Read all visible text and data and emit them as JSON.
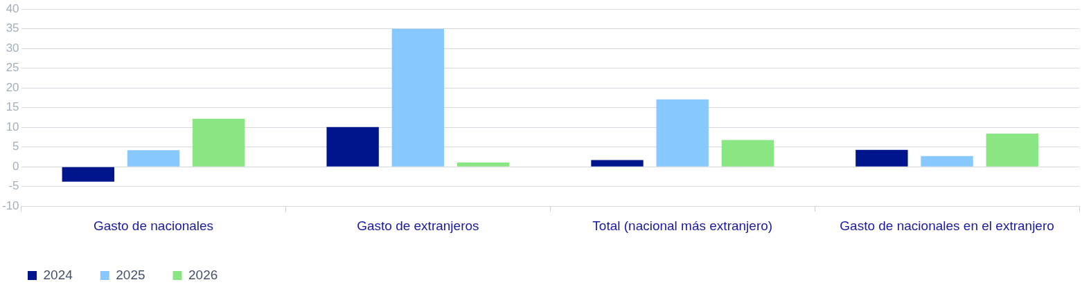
{
  "chart_data": {
    "type": "bar",
    "categories": [
      "Gasto de nacionales",
      "Gasto de extranjeros",
      "Total (nacional más extranjero)",
      "Gasto de nacionales en el extranjero"
    ],
    "series": [
      {
        "name": "2024",
        "color": "#00148c",
        "values": [
          -3.8,
          10.1,
          1.7,
          4.3
        ]
      },
      {
        "name": "2025",
        "color": "#87c8ff",
        "values": [
          4.2,
          35,
          17.1,
          2.7
        ]
      },
      {
        "name": "2026",
        "color": "#8ae683",
        "values": [
          12.2,
          1.1,
          6.8,
          8.4
        ]
      }
    ],
    "ylim": [
      -10,
      40
    ],
    "yticks": [
      -10,
      -5,
      0,
      5,
      10,
      15,
      20,
      25,
      30,
      35,
      40
    ],
    "grid": "y",
    "legend": "bottom left"
  }
}
